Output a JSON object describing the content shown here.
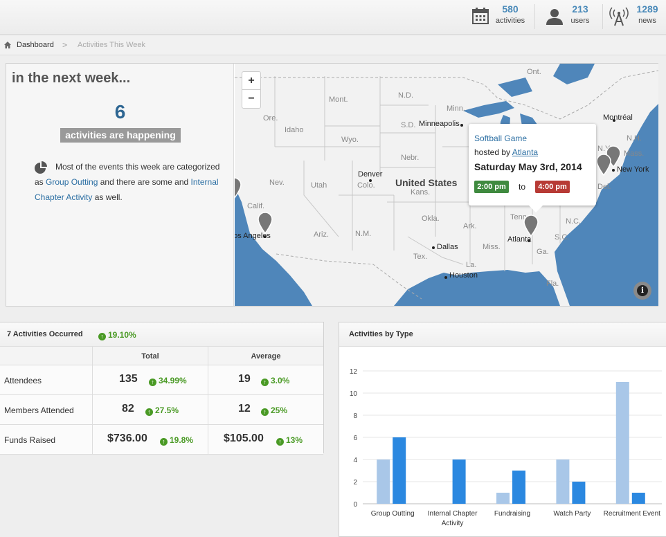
{
  "topbar": {
    "activities": {
      "count": "580",
      "label": "activities",
      "icon": "calendar-icon"
    },
    "users": {
      "count": "213",
      "label": "users",
      "icon": "user-icon"
    },
    "news": {
      "count": "1289",
      "label": "news",
      "icon": "broadcast-icon"
    }
  },
  "breadcrumb": {
    "home": "Dashboard",
    "current": "Activities This Week",
    "separator": ">"
  },
  "week": {
    "title": "in the next week...",
    "count": "6",
    "badge": "activities are happening",
    "text_pre": "Most of the events this week are categorized as",
    "link1": "Group Outting",
    "text_mid": "and there are some and",
    "link2": "Internal Chapter Activity",
    "text_post": "as well."
  },
  "map": {
    "zoom_in": "+",
    "zoom_out": "−",
    "info": "i",
    "country_label": "United States",
    "labels": [
      "Mont.",
      "N.D.",
      "Minn.",
      "Ont.",
      "Idaho",
      "Wyo.",
      "S.D.",
      "Nebr.",
      "Nev.",
      "Utah",
      "Colo.",
      "Kans.",
      "Calif.",
      "Ariz.",
      "N.M.",
      "Okla.",
      "Ark.",
      "Tex.",
      "Miss.",
      "La.",
      "Tenn.",
      "Ga.",
      "N.C.",
      "S.C.",
      "Fla.",
      "Ore.",
      "N.Y.",
      "Mass.",
      "N.H.",
      "Del."
    ],
    "cities": [
      "Minneapolis",
      "Denver",
      "Dallas",
      "Houston",
      "Atlanta",
      "Montréal",
      "New York",
      "Los Angeles"
    ],
    "popup": {
      "event": "Softball Game",
      "hosted_by": "hosted by",
      "host": "Atlanta",
      "date": "Saturday May 3rd, 2014",
      "start": "2:00 pm",
      "to": "to",
      "end": "4:00 pm"
    },
    "colors": {
      "water": "#4f86ba",
      "land": "#f2f2f2",
      "pin": "#777777"
    }
  },
  "activities": {
    "title": "7 Activities Occurred",
    "trend": "19.10%",
    "columns": [
      "",
      "Total",
      "Average"
    ],
    "rows": [
      {
        "label": "Attendees",
        "total": "135",
        "total_pct": "34.99%",
        "avg": "19",
        "avg_pct": "3.0%"
      },
      {
        "label": "Members Attended",
        "total": "82",
        "total_pct": "27.5%",
        "avg": "12",
        "avg_pct": "25%"
      },
      {
        "label": "Funds Raised",
        "total": "$736.00",
        "total_pct": "19.8%",
        "avg": "$105.00",
        "avg_pct": "13%"
      }
    ],
    "colors": {
      "up": "#4a9a25"
    }
  },
  "chart": {
    "title": "Activities by Type"
  },
  "chart_data": {
    "type": "bar",
    "categories": [
      "Group Outting",
      "Internal Chapter Activity",
      "Fundraising",
      "Watch Party",
      "Recruitment Event"
    ],
    "series": [
      {
        "values": [
          4,
          0,
          1,
          4,
          11
        ],
        "color": "#a9c7e8"
      },
      {
        "values": [
          6,
          4,
          3,
          2,
          1
        ],
        "color": "#2b88e0"
      }
    ],
    "ylim": [
      0,
      12
    ],
    "yticks": [
      0,
      2,
      4,
      6,
      8,
      10,
      12
    ],
    "grid": true
  }
}
